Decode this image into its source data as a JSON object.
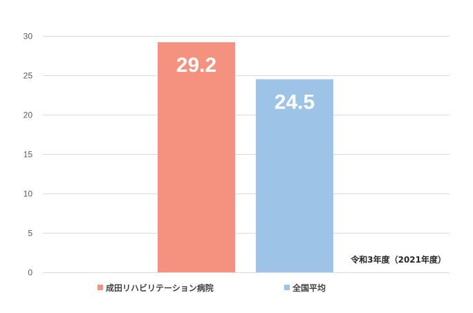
{
  "chart_data": {
    "type": "bar",
    "series": [
      {
        "name": "成田リハビリテーション病院",
        "values": [
          29.2
        ],
        "color": "#F4917F"
      },
      {
        "name": "全国平均",
        "values": [
          24.5
        ],
        "color": "#9DC3E6"
      }
    ],
    "ylim": [
      0,
      30
    ],
    "yticks": [
      0,
      5,
      10,
      15,
      20,
      25,
      30
    ],
    "annotation": "令和3年度（2021年度）",
    "legend": "bottom",
    "grid": true,
    "data_labels": true
  }
}
